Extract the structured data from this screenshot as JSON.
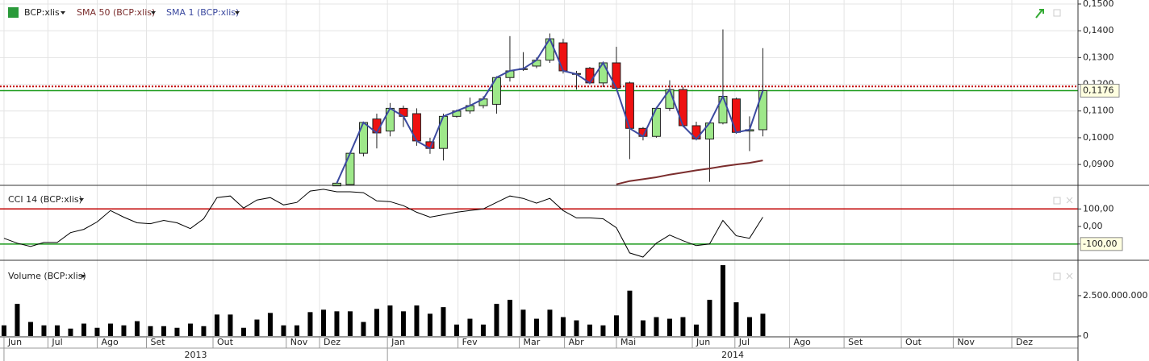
{
  "chart_data": [
    {
      "type": "candlestick",
      "title": "BCP:xlis",
      "x": [
        25,
        26,
        27,
        28,
        29,
        30,
        31,
        32,
        33,
        34,
        35,
        36,
        37,
        38,
        39,
        40,
        41,
        42,
        43,
        44,
        45,
        46,
        47,
        48,
        49,
        50,
        51,
        52,
        53,
        54,
        55,
        56,
        57
      ],
      "open": [
        0.082,
        0.0825,
        0.0942,
        0.107,
        0.1025,
        0.111,
        0.109,
        0.0985,
        0.096,
        0.108,
        0.11,
        0.112,
        0.1125,
        0.1225,
        0.1255,
        0.1268,
        0.129,
        0.1355,
        0.124,
        0.126,
        0.1205,
        0.128,
        0.1205,
        0.1035,
        0.1005,
        0.111,
        0.118,
        0.1045,
        0.0995,
        0.1055,
        0.1145,
        0.1025,
        0.103
      ],
      "high": [
        0.083,
        0.0945,
        0.106,
        0.109,
        0.113,
        0.112,
        0.111,
        0.1,
        0.109,
        0.1105,
        0.115,
        0.1155,
        0.123,
        0.138,
        0.132,
        0.13,
        0.139,
        0.137,
        0.125,
        0.1265,
        0.1285,
        0.134,
        0.121,
        0.104,
        0.1115,
        0.1215,
        0.119,
        0.106,
        0.106,
        0.1405,
        0.115,
        0.108,
        0.1335
      ],
      "low": [
        0.082,
        0.0825,
        0.093,
        0.096,
        0.1005,
        0.104,
        0.097,
        0.094,
        0.0915,
        0.1075,
        0.109,
        0.111,
        0.109,
        0.121,
        0.125,
        0.126,
        0.128,
        0.124,
        0.118,
        0.12,
        0.119,
        0.118,
        0.092,
        0.099,
        0.1,
        0.11,
        0.104,
        0.099,
        0.0835,
        0.105,
        0.1015,
        0.095,
        0.1005
      ],
      "close": [
        0.083,
        0.0942,
        0.1057,
        0.1018,
        0.111,
        0.108,
        0.0988,
        0.096,
        0.108,
        0.11,
        0.112,
        0.1145,
        0.1225,
        0.125,
        0.1258,
        0.129,
        0.137,
        0.125,
        0.1238,
        0.1205,
        0.128,
        0.1185,
        0.1035,
        0.1005,
        0.111,
        0.118,
        0.1045,
        0.0995,
        0.1055,
        0.1155,
        0.102,
        0.103,
        0.1176
      ],
      "up_color": "#9ee88a",
      "down_color": "#ee1111",
      "series": [
        {
          "name": "SMA 50 (BCP:xlis)",
          "color": "#7b2d2d",
          "values": [
            null,
            null,
            null,
            null,
            null,
            null,
            null,
            null,
            null,
            null,
            null,
            null,
            null,
            null,
            null,
            null,
            null,
            null,
            null,
            null,
            null,
            0.0826,
            0.0838,
            0.0845,
            0.0852,
            0.0862,
            0.087,
            0.0878,
            0.0885,
            0.0893,
            0.09,
            0.0906,
            0.0915
          ]
        },
        {
          "name": "SMA 1 (BCP:xlis)",
          "color": "#3c4aa0",
          "values": [
            0.083,
            0.0942,
            0.1057,
            0.1018,
            0.111,
            0.108,
            0.0988,
            0.096,
            0.108,
            0.11,
            0.112,
            0.1145,
            0.1225,
            0.125,
            0.1258,
            0.129,
            0.137,
            0.125,
            0.1238,
            0.1205,
            0.128,
            0.1185,
            0.1035,
            0.1005,
            0.111,
            0.118,
            0.1045,
            0.0995,
            0.1055,
            0.1155,
            0.102,
            0.103,
            0.1176
          ]
        }
      ],
      "xlim": [
        -0.3,
        80.67
      ],
      "ylim": [
        0.0825,
        0.1515
      ],
      "yticks": [
        {
          "value": 0.09,
          "label": "0,0900"
        },
        {
          "value": 0.1,
          "label": "0,1000"
        },
        {
          "value": 0.11,
          "label": "0,1100"
        },
        {
          "value": 0.12,
          "label": "0,1200"
        },
        {
          "value": 0.13,
          "label": "0,1300"
        },
        {
          "value": 0.14,
          "label": "0,1400"
        },
        {
          "value": 0.15,
          "label": "0,1500"
        }
      ],
      "hlines": [
        {
          "value": 0.1192,
          "color": "#c00000",
          "style": "dotted"
        },
        {
          "value": 0.1176,
          "label": "0,1176",
          "color": "#1a9a1a",
          "style": "solid"
        }
      ]
    },
    {
      "type": "line",
      "title": "CCI 14 (BCP:xlis)",
      "color": "#000000",
      "x": [
        0,
        1,
        2,
        3,
        4,
        5,
        6,
        7,
        8,
        9,
        10,
        11,
        12,
        13,
        14,
        15,
        16,
        17,
        18,
        19,
        20,
        21,
        22,
        23,
        24,
        25,
        26,
        27,
        28,
        29,
        30,
        31,
        32,
        33,
        34,
        35,
        36,
        37,
        38,
        39,
        40,
        41,
        42,
        43,
        44,
        45,
        46,
        47,
        48,
        49,
        50,
        51,
        52,
        53,
        54,
        55,
        56,
        57
      ],
      "values": [
        -67,
        -95,
        -114,
        -91,
        -91,
        -35,
        -16,
        26,
        91,
        53,
        21,
        16,
        35,
        21,
        -12,
        44,
        165,
        174,
        105,
        151,
        165,
        123,
        137,
        202,
        212,
        198,
        198,
        193,
        146,
        142,
        119,
        81,
        53,
        67,
        81,
        91,
        100,
        137,
        174,
        160,
        133,
        160,
        91,
        49,
        49,
        44,
        -7,
        -151,
        -174,
        -95,
        -49,
        -81,
        -109,
        -100,
        35,
        -53,
        -67,
        53
      ],
      "xlim": [
        -0.3,
        80.67
      ],
      "ylim": [
        -188,
        230
      ],
      "yticks": [
        {
          "value": 100,
          "label": "100,00"
        },
        {
          "value": 0,
          "label": "0,00"
        },
        {
          "value": -100,
          "label": "-100,00"
        }
      ],
      "hlines": [
        {
          "value": 100,
          "color": "#c00000",
          "style": "solid"
        },
        {
          "value": -100,
          "color": "#1a9a1a",
          "style": "solid"
        }
      ]
    },
    {
      "type": "bar",
      "title": "Volume (BCP:xlis)",
      "color": "#000000",
      "x": [
        0,
        1,
        2,
        3,
        4,
        5,
        6,
        7,
        8,
        9,
        10,
        11,
        12,
        13,
        14,
        15,
        16,
        17,
        18,
        19,
        20,
        21,
        22,
        23,
        24,
        25,
        26,
        27,
        28,
        29,
        30,
        31,
        32,
        33,
        34,
        35,
        36,
        37,
        38,
        39,
        40,
        41,
        42,
        43,
        44,
        45,
        46,
        47,
        48,
        49,
        50,
        51,
        52,
        53,
        54,
        55,
        56,
        57
      ],
      "values": [
        660000000,
        1990000000,
        870000000,
        660000000,
        660000000,
        460000000,
        770000000,
        510000000,
        770000000,
        660000000,
        920000000,
        610000000,
        610000000,
        510000000,
        770000000,
        610000000,
        1330000000,
        1330000000,
        510000000,
        1020000000,
        1430000000,
        660000000,
        660000000,
        1480000000,
        1630000000,
        1530000000,
        1530000000,
        870000000,
        1680000000,
        1890000000,
        1530000000,
        1890000000,
        1380000000,
        1790000000,
        710000000,
        1070000000,
        710000000,
        1990000000,
        2240000000,
        1630000000,
        1070000000,
        1630000000,
        1170000000,
        970000000,
        710000000,
        660000000,
        1280000000,
        2810000000,
        970000000,
        1170000000,
        1070000000,
        1170000000,
        710000000,
        2240000000,
        4390000000,
        2090000000,
        1170000000,
        1380000000
      ],
      "xlim": [
        -0.3,
        80.67
      ],
      "ylim": [
        -51000000,
        4643000000
      ],
      "yticks": [
        0,
        {
          "value": 2500000000,
          "label": "2.500.000.000"
        }
      ]
    },
    {
      "type": "time-axis",
      "xlim": [
        -0.3,
        80.67
      ],
      "xticks": [
        {
          "value": 0,
          "label": "Jun"
        },
        {
          "value": 3.3,
          "label": "Jul"
        },
        {
          "value": 7,
          "label": "Ago"
        },
        {
          "value": 10.7,
          "label": "Set"
        },
        {
          "value": 15.7,
          "label": "Out"
        },
        {
          "value": 21.2,
          "label": "Nov"
        },
        {
          "value": 23.7,
          "label": "Dez"
        },
        {
          "value": 28.8,
          "label": "Jan"
        },
        {
          "value": 34.1,
          "label": "Fev"
        },
        {
          "value": 38.7,
          "label": "Mar"
        },
        {
          "value": 42.1,
          "label": "Abr"
        },
        {
          "value": 46,
          "label": "Mai"
        },
        {
          "value": 51.7,
          "label": "Jun"
        },
        {
          "value": 54.9,
          "label": "Jul"
        },
        {
          "value": 59,
          "label": "Ago"
        },
        {
          "value": 63.1,
          "label": "Set"
        },
        {
          "value": 67.4,
          "label": "Out"
        },
        {
          "value": 71.3,
          "label": "Nov"
        },
        {
          "value": 75.7,
          "label": "Dez"
        }
      ],
      "years": [
        {
          "value": 0,
          "label": "2013"
        },
        {
          "value": 28.8,
          "label": "2014"
        }
      ]
    }
  ]
}
